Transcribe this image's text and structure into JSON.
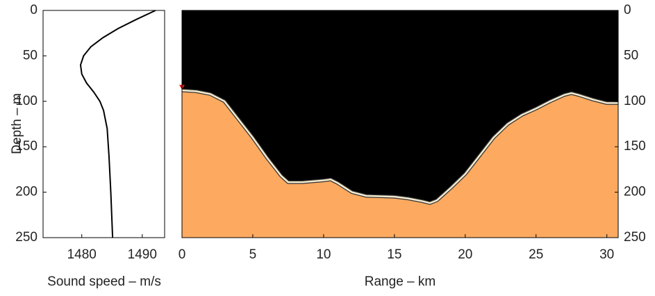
{
  "chart_data": [
    {
      "type": "line",
      "xlabel": "Sound speed – m/s",
      "ylabel": "Depth – m",
      "x": [
        1492.2,
        1489,
        1486,
        1483.5,
        1481.5,
        1480.3,
        1479.8,
        1480,
        1480.8,
        1482,
        1483,
        1483.6,
        1484.2,
        1484.5,
        1484.8,
        1485.1
      ],
      "y": [
        0,
        10,
        20,
        30,
        40,
        50,
        60,
        70,
        80,
        90,
        100,
        110,
        130,
        160,
        200,
        250
      ],
      "color": "#000000",
      "xlim": [
        1473.6,
        1493.7
      ],
      "xticks": [
        1480,
        1490
      ],
      "ylim": [
        250,
        0
      ],
      "yticks": [
        0,
        50,
        100,
        150,
        200,
        250
      ]
    },
    {
      "type": "area",
      "xlabel": "Range – km",
      "x": [
        0,
        1,
        2,
        3,
        4,
        5,
        6,
        7,
        7.5,
        8.5,
        10,
        10.5,
        11,
        12,
        13,
        15,
        16,
        17,
        17.5,
        18,
        19,
        20,
        21,
        22,
        23,
        24,
        25,
        26,
        27,
        27.5,
        28,
        29,
        30,
        30.8
      ],
      "y": [
        88,
        89,
        92,
        100,
        120,
        140,
        162,
        182,
        189,
        189,
        187,
        186,
        190,
        200,
        204,
        205,
        207,
        210,
        212,
        209,
        195,
        180,
        160,
        140,
        125,
        115,
        108,
        100,
        93,
        91,
        93,
        98,
        102,
        102
      ],
      "color": "#fdaa60",
      "water_color": "#000000",
      "source_depth": 85,
      "source_color": "#e02020",
      "xlim": [
        0,
        30.8
      ],
      "xticks": [
        0,
        5,
        10,
        15,
        20,
        25,
        30
      ],
      "y2lim": [
        250,
        0
      ],
      "y2ticks": [
        0,
        50,
        100,
        150,
        200,
        250
      ]
    }
  ]
}
